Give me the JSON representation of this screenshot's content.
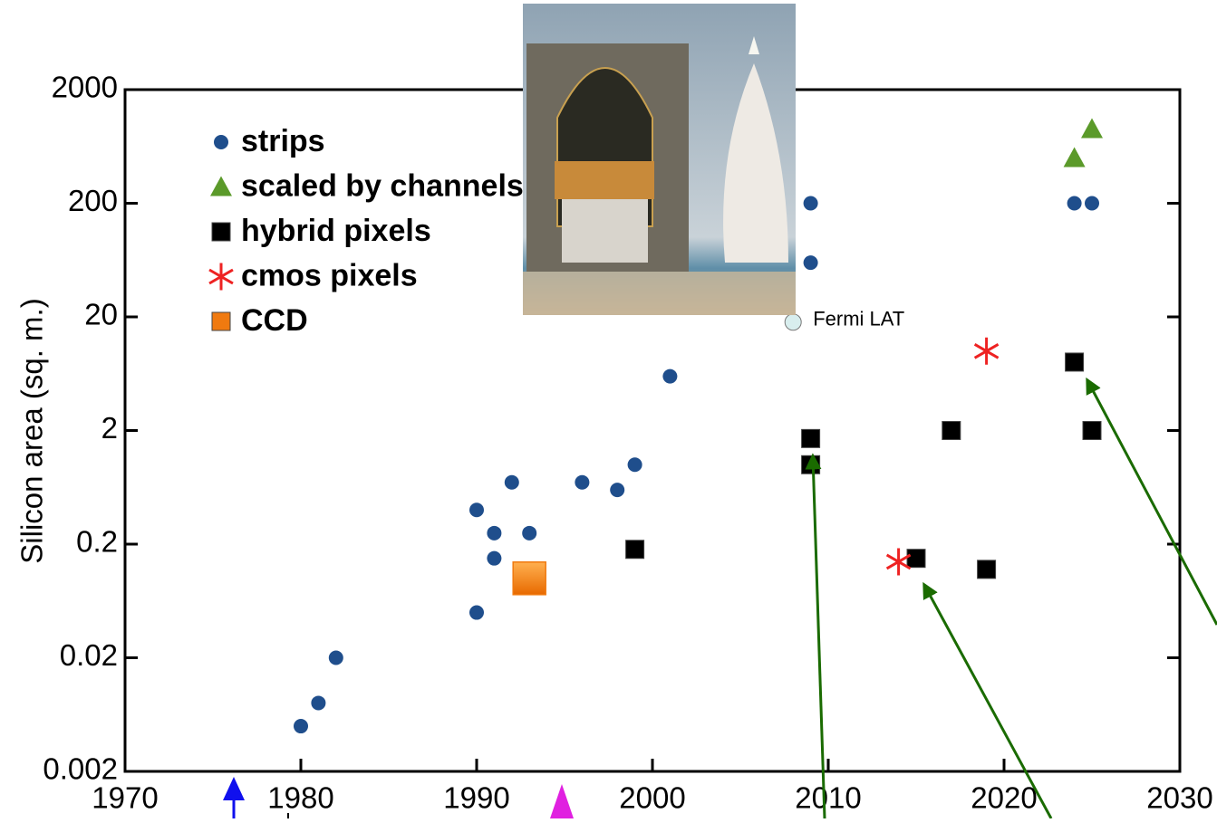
{
  "chart_data": {
    "type": "scatter",
    "y_label": "Silicon area (sq. m.)",
    "xlim": [
      1970,
      2030
    ],
    "xticks": [
      1970,
      1980,
      1990,
      2000,
      2010,
      2020,
      2030
    ],
    "ylim": [
      0.002,
      2000
    ],
    "yticks": [
      0.002,
      0.02,
      0.2,
      2,
      20,
      200,
      2000
    ],
    "y_scale": "log",
    "series": [
      {
        "name": "strips",
        "color": "#1f4e8c",
        "marker": "circle",
        "x": [
          1980,
          1981,
          1982,
          1990,
          1990,
          1991,
          1991,
          1992,
          1993,
          1996,
          1998,
          1999,
          2001,
          2009,
          2009,
          2024,
          2025
        ],
        "y": [
          0.005,
          0.008,
          0.02,
          0.4,
          0.05,
          0.25,
          0.15,
          0.7,
          0.25,
          0.7,
          0.6,
          1,
          6,
          200,
          60,
          200,
          200
        ]
      },
      {
        "name": "scaled by channels",
        "color": "#5b9a2a",
        "marker": "triangle",
        "x": [
          2024,
          2025
        ],
        "y": [
          500,
          900
        ]
      },
      {
        "name": "hybrid pixels",
        "color": "#000000",
        "marker": "square",
        "x": [
          1999,
          2009,
          2009,
          2017,
          2025,
          2024,
          2015,
          2019
        ],
        "y": [
          0.18,
          1.7,
          1,
          2,
          2,
          8,
          0.15,
          0.12
        ]
      },
      {
        "name": "cmos pixels",
        "color": "#ee2222",
        "marker": "star",
        "x": [
          2014,
          2019
        ],
        "y": [
          0.14,
          10
        ]
      },
      {
        "name": "CCD",
        "color": "#f07a10",
        "marker": "bigsquare",
        "x": [
          1993
        ],
        "y": [
          0.1
        ]
      }
    ],
    "annotations": [
      {
        "text": "Fermi LAT",
        "x": 2008,
        "y": 18
      }
    ]
  }
}
